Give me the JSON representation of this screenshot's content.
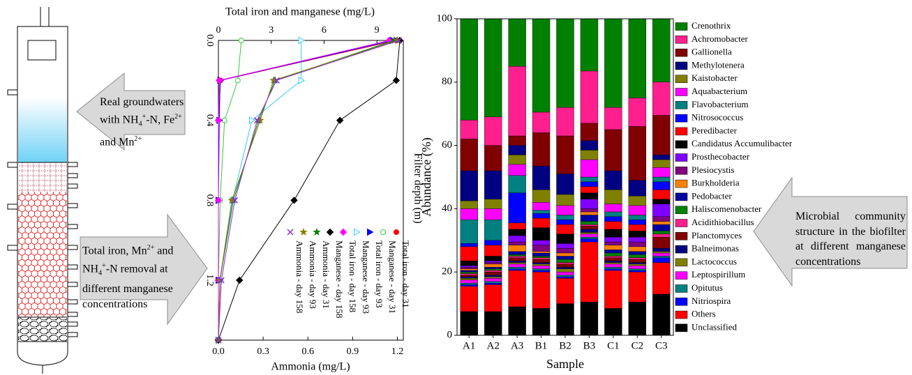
{
  "diagram": {
    "inflow_text": [
      "Real groundwaters",
      "with NH",
      "4",
      "+",
      "-N, Fe",
      "2+",
      "and Mn",
      "2+"
    ],
    "removal_text": [
      "Total iron, Mn",
      "2+",
      "and",
      "NH",
      "4",
      "+",
      "-N removal at",
      "different manganese",
      "concentrations"
    ],
    "community_text": [
      "Microbial community",
      "structure in the biofilter",
      "at different manganese",
      "concentrations"
    ]
  },
  "chart_data": [
    {
      "type": "line",
      "y2label": "Total iron and manganese (mg/L)",
      "xlabel": "Filter depth (m)",
      "ylabel": "Ammonia (mg/L)",
      "x": [
        0,
        0.2,
        0.4,
        0.8,
        1.2,
        1.5
      ],
      "xlim": [
        0,
        1.5
      ],
      "xticks": [
        {
          "value": 0,
          "label": "0.0"
        },
        0.4,
        0.8,
        1.2
      ],
      "ylim": [
        0,
        1.24
      ],
      "yticks": [
        {
          "value": 0,
          "label": "0.0"
        },
        0.3,
        0.6,
        0.9,
        1.2
      ],
      "y2lim": [
        0,
        10.5
      ],
      "y2ticks": [
        0,
        3,
        6,
        9
      ],
      "series": [
        {
          "name": "Total iron - day 31",
          "color": "#ff0000",
          "marker": "circle",
          "axis": "y2",
          "values": [
            10.1,
            0.12,
            0,
            0,
            0,
            0
          ]
        },
        {
          "name": "Manganese - day 31",
          "color": "#33cc33",
          "marker": "open-circle",
          "axis": "y2",
          "values": [
            1.3,
            1.1,
            0.35,
            0.1,
            0,
            0
          ]
        },
        {
          "name": "Total iron - day 93",
          "color": "#0000ff",
          "marker": "triangle",
          "axis": "y2",
          "values": [
            9.9,
            0.1,
            0.05,
            0,
            0,
            0
          ]
        },
        {
          "name": "Manganese - day 93",
          "color": "#33ccff",
          "marker": "open-triangle",
          "axis": "y2",
          "values": [
            4.7,
            4.7,
            1.9,
            0.8,
            0.1,
            0
          ]
        },
        {
          "name": "Total iron - day 158",
          "color": "#ff00ff",
          "marker": "diamond",
          "axis": "y2",
          "values": [
            9.7,
            0.05,
            0,
            0,
            0,
            0
          ]
        },
        {
          "name": "Manganese - day 158",
          "color": "#000000",
          "marker": "diamond",
          "axis": "y2",
          "values": [
            10.3,
            10.1,
            6.9,
            4.3,
            1.2,
            0
          ]
        },
        {
          "name": "Ammonia - day 31",
          "color": "#008000",
          "marker": "star",
          "values": [
            1.18,
            0.38,
            0.27,
            0.1,
            0.01,
            0
          ]
        },
        {
          "name": "Ammonia - day 93",
          "color": "#808000",
          "marker": "star",
          "values": [
            1.2,
            0.37,
            0.28,
            0.09,
            0.01,
            0
          ]
        },
        {
          "name": "Ammonia - day 158",
          "color": "#8a2be2",
          "marker": "x",
          "values": [
            1.21,
            0.39,
            0.26,
            0.11,
            0.02,
            0
          ]
        }
      ]
    },
    {
      "type": "bar",
      "stacked": true,
      "ylabel": "Abundance (%)",
      "xlabel": "Sample",
      "categories": [
        "A1",
        "A2",
        "A3",
        "B1",
        "B2",
        "B3",
        "C1",
        "C2",
        "C3"
      ],
      "ylim": [
        0,
        100
      ],
      "yticks": [
        0,
        20,
        40,
        60,
        80,
        100
      ],
      "legend": "right",
      "series": [
        {
          "name": "Crenothrix",
          "color": "#008000",
          "values": [
            32,
            31,
            15,
            29.5,
            28,
            16.5,
            28,
            25,
            20
          ]
        },
        {
          "name": "Achromobacter",
          "color": "#ff1f8e",
          "values": [
            6,
            9,
            22,
            6.5,
            9,
            16.5,
            7,
            9,
            10.5
          ]
        },
        {
          "name": "Gallionella",
          "color": "#800000",
          "values": [
            10,
            8,
            3,
            10.5,
            12,
            5.5,
            13,
            17,
            12.5
          ]
        },
        {
          "name": "Methylotenera",
          "color": "#000080",
          "values": [
            9.5,
            9,
            3,
            7.5,
            6.5,
            3,
            6,
            5,
            1.5
          ]
        },
        {
          "name": "Kaistobacter",
          "color": "#808000",
          "values": [
            2.5,
            3,
            3,
            4,
            3.5,
            3,
            4.5,
            3,
            2.5
          ]
        },
        {
          "name": "Aquabacterium",
          "color": "#ff00ff",
          "values": [
            3.5,
            3.5,
            3.5,
            2.5,
            3,
            5.5,
            2.5,
            3,
            3
          ]
        },
        {
          "name": "Flavobacterium",
          "color": "#008080",
          "values": [
            7.5,
            6.5,
            5.5,
            1,
            1.5,
            1.5,
            1.5,
            1.5,
            1.5
          ]
        },
        {
          "name": "Nitrosococcus",
          "color": "#0000ff",
          "values": [
            1,
            1.5,
            9.5,
            1.5,
            1.5,
            1.5,
            1.5,
            1.5,
            2.5
          ]
        },
        {
          "name": "Peredibacter",
          "color": "#ff0000",
          "values": [
            4.5,
            3.5,
            2,
            3,
            3,
            2,
            2.5,
            2,
            3
          ]
        },
        {
          "name": "Candidatus Accumulibacter",
          "color": "#000000",
          "values": [
            1.5,
            1.5,
            2,
            4,
            3,
            2,
            2.5,
            2,
            1.5
          ]
        },
        {
          "name": "Prosthecobacter",
          "color": "#8000ff",
          "values": [
            0.5,
            0.5,
            2,
            1.5,
            1.5,
            3,
            1.5,
            1.5,
            4
          ]
        },
        {
          "name": "Plesiocystis",
          "color": "#800080",
          "values": [
            0.5,
            0.5,
            1,
            2,
            1.5,
            1,
            1,
            1.5,
            1.5
          ]
        },
        {
          "name": "Burkholderia",
          "color": "#ff8000",
          "values": [
            0.5,
            1,
            2,
            0.5,
            1,
            1,
            1.5,
            1.5,
            1
          ]
        },
        {
          "name": "Pedobacter",
          "color": "#0000a0",
          "values": [
            0.5,
            0.5,
            1,
            1,
            1,
            2,
            1,
            1,
            2
          ]
        },
        {
          "name": "Haliscomenobacter",
          "color": "#008000",
          "values": [
            0.5,
            0.5,
            0.5,
            0.5,
            1,
            1,
            1,
            1,
            1
          ]
        },
        {
          "name": "Acidithiobacillus",
          "color": "#ff1f8e",
          "values": [
            0.5,
            0.5,
            0.5,
            0.5,
            0.5,
            0.5,
            0.5,
            0.5,
            1
          ]
        },
        {
          "name": "Planctomyces",
          "color": "#800000",
          "values": [
            0.5,
            1,
            1,
            1,
            1,
            1,
            1,
            1,
            3.5
          ]
        },
        {
          "name": "Balneimonas",
          "color": "#000080",
          "values": [
            0.5,
            0.5,
            0.5,
            0.5,
            0.5,
            1,
            0.5,
            0.5,
            1
          ]
        },
        {
          "name": "Lactococcus",
          "color": "#808000",
          "values": [
            0.5,
            0.5,
            0.5,
            0.5,
            1,
            0.5,
            0.5,
            0.5,
            0.5
          ]
        },
        {
          "name": "Leptospirillum",
          "color": "#ff00ff",
          "values": [
            1,
            1,
            1,
            1,
            1,
            1,
            1,
            1,
            1
          ]
        },
        {
          "name": "Opitutus",
          "color": "#008080",
          "values": [
            0.5,
            0.5,
            0.5,
            0.5,
            0.5,
            0.5,
            0.5,
            0.5,
            0.5
          ]
        },
        {
          "name": "Nitriospira",
          "color": "#0000ff",
          "values": [
            0.5,
            0.5,
            0.5,
            0.5,
            0.5,
            1,
            0.5,
            0.5,
            1.5
          ]
        },
        {
          "name": "Others",
          "color": "#ff0000",
          "values": [
            8,
            8.5,
            11.5,
            11.5,
            8,
            19,
            12,
            9.5,
            10
          ]
        },
        {
          "name": "Unclassified",
          "color": "#000000",
          "values": [
            7.5,
            7.5,
            9,
            8.5,
            10,
            10.5,
            8.5,
            10.5,
            13
          ]
        }
      ]
    }
  ]
}
